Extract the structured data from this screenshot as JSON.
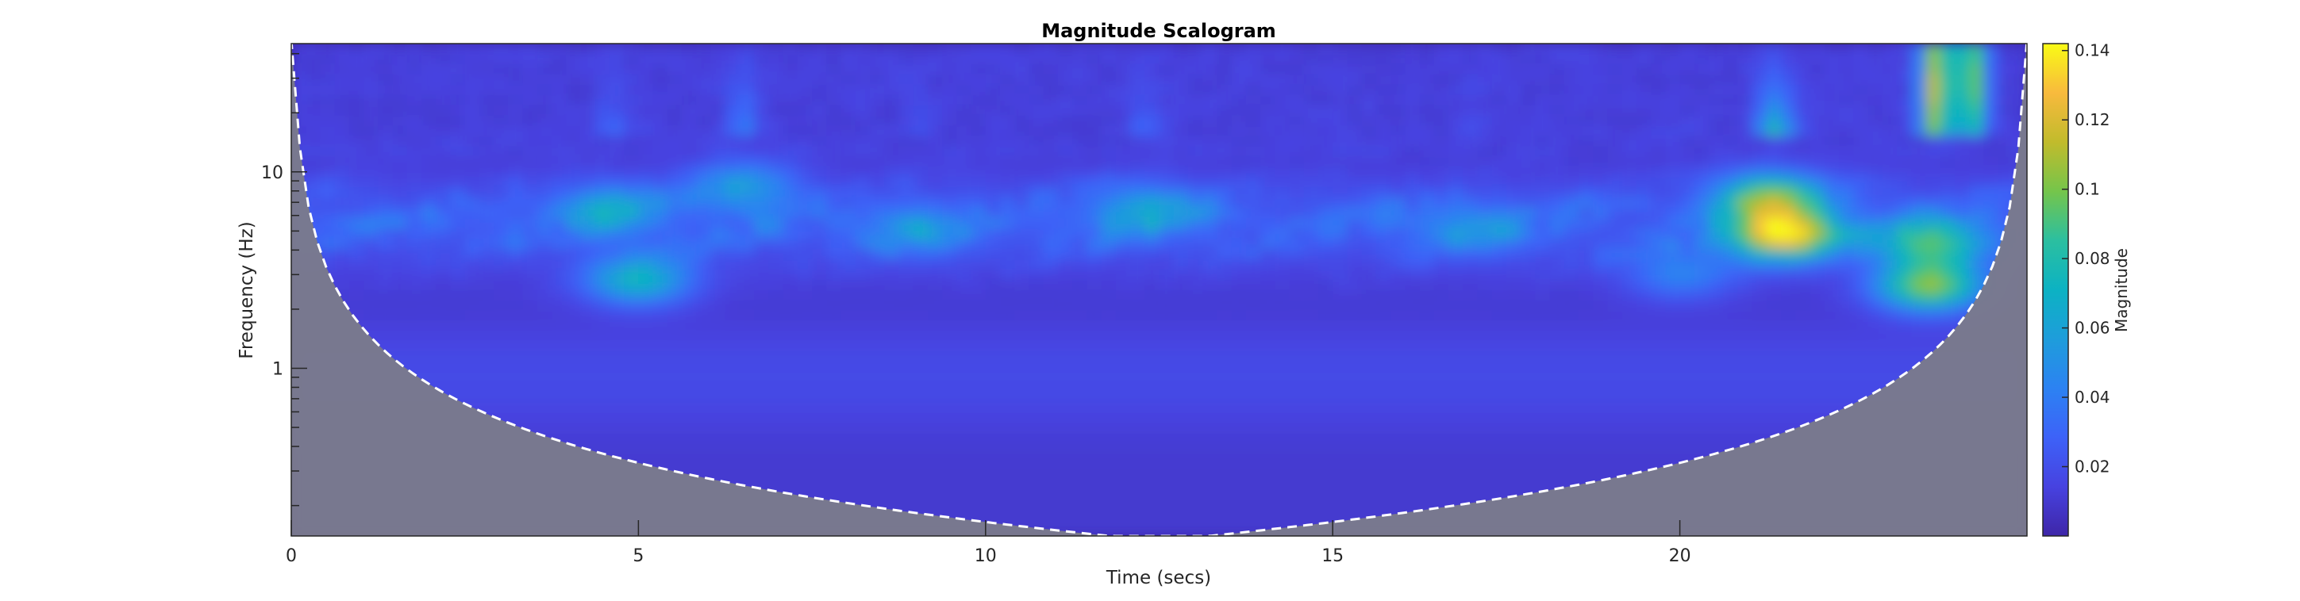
{
  "chart_data": {
    "type": "heatmap",
    "title": "Magnitude Scalogram",
    "xlabel": "Time (secs)",
    "ylabel": "Frequency (Hz)",
    "colorbar_label": "Magnitude",
    "xlim": [
      0,
      25
    ],
    "ylim": [
      0.14,
      45
    ],
    "yscale": "log",
    "clim": [
      0,
      0.142
    ],
    "x_ticks": [
      0,
      5,
      10,
      15,
      20
    ],
    "x_tick_labels": [
      "0",
      "5",
      "10",
      "15",
      "20"
    ],
    "y_ticks": [
      1,
      10
    ],
    "y_tick_labels": [
      "1",
      "10"
    ],
    "colorbar_ticks": [
      0.02,
      0.04,
      0.06,
      0.08,
      0.1,
      0.12,
      0.14
    ],
    "colorbar_tick_labels": [
      "0.02",
      "0.04",
      "0.06",
      "0.08",
      "0.1",
      "0.12",
      "0.14"
    ],
    "colormap": "parula",
    "cone_of_influence_color": "#7a7a8c",
    "cone_of_influence_line": "white dashed",
    "background_magnitude": 0.01,
    "hotspots": [
      {
        "time": 21.5,
        "freq": 4.8,
        "magnitude": 0.13
      },
      {
        "time": 21.3,
        "freq": 7.5,
        "magnitude": 0.09
      },
      {
        "time": 23.6,
        "freq": 2.6,
        "magnitude": 0.1
      },
      {
        "time": 23.6,
        "freq": 4.3,
        "magnitude": 0.08
      },
      {
        "time": 23.7,
        "freq": 30,
        "magnitude": 0.11
      },
      {
        "time": 24.2,
        "freq": 30,
        "magnitude": 0.1
      },
      {
        "time": 5.0,
        "freq": 2.8,
        "magnitude": 0.07
      },
      {
        "time": 4.6,
        "freq": 6.5,
        "magnitude": 0.05
      },
      {
        "time": 6.5,
        "freq": 8.5,
        "magnitude": 0.05
      },
      {
        "time": 12.3,
        "freq": 6.5,
        "magnitude": 0.05
      },
      {
        "time": 9.0,
        "freq": 5.0,
        "magnitude": 0.04
      },
      {
        "time": 17.0,
        "freq": 5.0,
        "magnitude": 0.04
      },
      {
        "time": 20.0,
        "freq": 3.0,
        "magnitude": 0.04
      }
    ],
    "grid": false,
    "legend": "none"
  }
}
